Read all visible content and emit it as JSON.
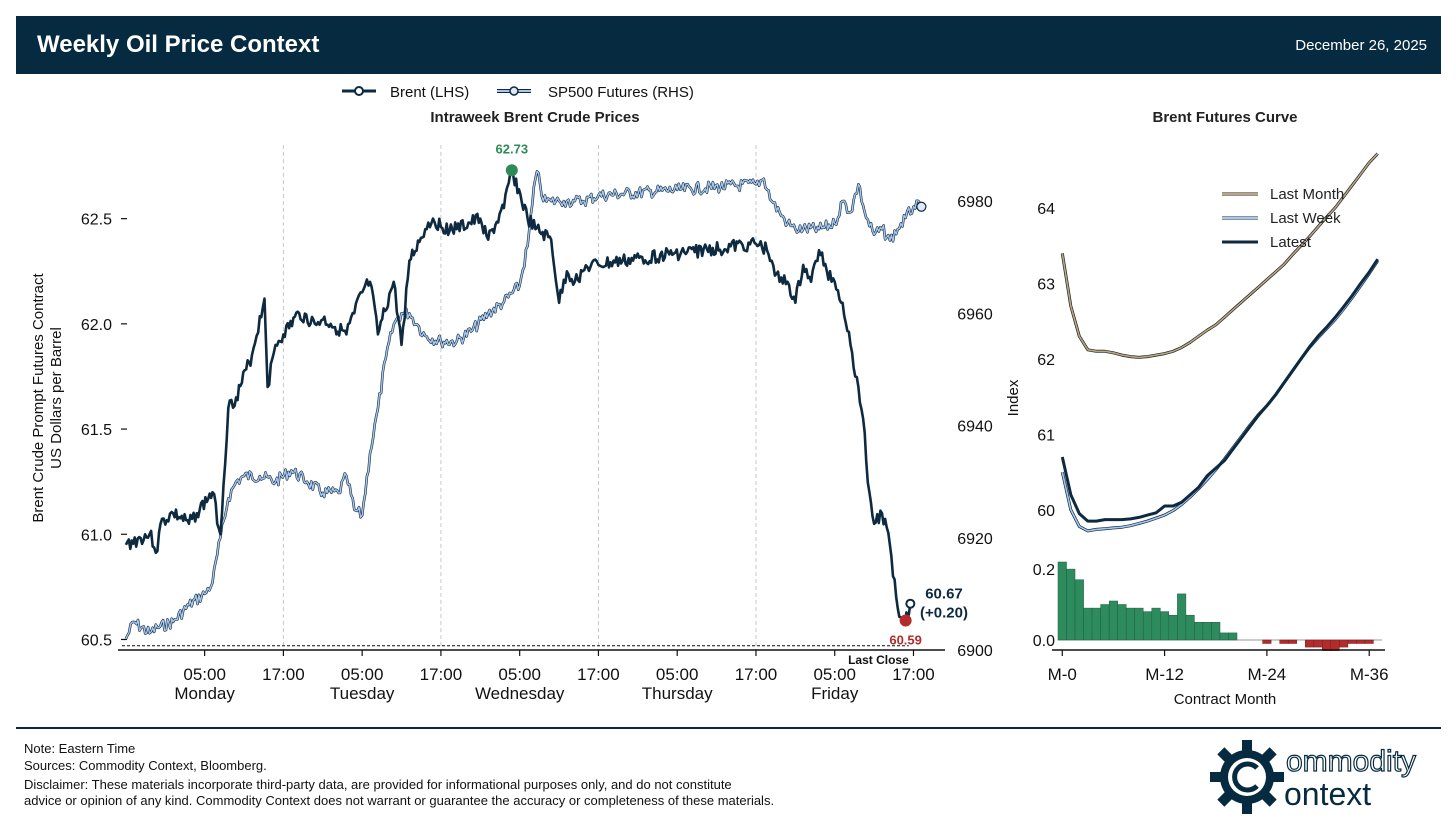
{
  "header": {
    "title": "Weekly Oil Price Context",
    "date": "December 26, 2025"
  },
  "colors": {
    "header_bg": "#062a40",
    "brent": "#0d2a40",
    "sp500": "#a9c6ec",
    "high": "#2e8b57",
    "low": "#b32b2b",
    "last_month": "#c9a36e",
    "bar_pos": "#2e8b5e",
    "bar_neg": "#b32b2b"
  },
  "chart_data": [
    {
      "type": "line",
      "title": "Intraweek Brent Crude Prices",
      "ylabel_line1": "Brent Crude Prompt Futures Contract",
      "ylabel_line2": "US Dollars per Barrel",
      "ylim_left": [
        60.45,
        62.85
      ],
      "ylim_right": [
        6900,
        6990
      ],
      "left_ticks": [
        "60.5",
        "61.0",
        "61.5",
        "62.0",
        "62.5"
      ],
      "left_tick_values": [
        60.5,
        61.0,
        61.5,
        62.0,
        62.5
      ],
      "right_ticks": [
        "6900",
        "6920",
        "6940",
        "6960",
        "6980"
      ],
      "right_tick_values": [
        6900,
        6920,
        6940,
        6960,
        6980
      ],
      "x_ticks": [
        {
          "time": "05:00",
          "day": "Monday",
          "t": 0.5
        },
        {
          "time": "17:00",
          "day": "",
          "t": 1.0
        },
        {
          "time": "05:00",
          "day": "Tuesday",
          "t": 1.5
        },
        {
          "time": "17:00",
          "day": "",
          "t": 2.0
        },
        {
          "time": "05:00",
          "day": "Wednesday",
          "t": 2.5
        },
        {
          "time": "17:00",
          "day": "",
          "t": 3.0
        },
        {
          "time": "05:00",
          "day": "Thursday",
          "t": 3.5
        },
        {
          "time": "17:00",
          "day": "",
          "t": 4.0
        },
        {
          "time": "05:00",
          "day": "Friday",
          "t": 4.5
        },
        {
          "time": "17:00",
          "day": "",
          "t": 5.0
        }
      ],
      "xlim": [
        -0.05,
        5.2
      ],
      "legend": [
        {
          "name": "Brent (LHS)"
        },
        {
          "name": "SP500 Futures (RHS)"
        }
      ],
      "series": [
        {
          "name": "Brent (LHS)",
          "t": [
            0.0,
            0.15,
            0.2,
            0.22,
            0.3,
            0.4,
            0.45,
            0.55,
            0.6,
            0.65,
            0.7,
            0.8,
            0.88,
            0.9,
            0.95,
            1.0,
            1.1,
            1.2,
            1.25,
            1.3,
            1.4,
            1.45,
            1.5,
            1.55,
            1.6,
            1.7,
            1.75,
            1.8,
            1.9,
            1.95,
            2.0,
            2.1,
            2.25,
            2.3,
            2.4,
            2.45,
            2.55,
            2.6,
            2.7,
            2.75,
            2.8,
            2.85,
            2.9,
            2.93,
            3.0,
            3.45,
            4.0,
            4.07,
            4.1,
            4.15,
            4.2,
            4.25,
            4.3,
            4.35,
            4.4,
            4.45,
            4.5,
            4.55,
            4.6,
            4.65,
            4.68,
            4.7,
            4.72,
            4.75,
            4.8,
            4.85,
            4.9,
            4.95,
            4.96,
            4.98
          ],
          "values": [
            60.95,
            61.0,
            60.92,
            61.05,
            61.1,
            61.05,
            61.1,
            61.2,
            61.0,
            61.6,
            61.65,
            61.85,
            62.12,
            61.7,
            61.9,
            61.95,
            62.05,
            62.0,
            62.02,
            62.0,
            61.95,
            62.05,
            62.15,
            62.2,
            61.95,
            62.2,
            61.9,
            62.3,
            62.45,
            62.5,
            62.46,
            62.45,
            62.5,
            62.4,
            62.55,
            62.73,
            62.5,
            62.45,
            62.4,
            62.1,
            62.25,
            62.2,
            62.25,
            62.27,
            62.28,
            62.33,
            62.38,
            62.35,
            62.3,
            62.2,
            62.2,
            62.1,
            62.28,
            62.2,
            62.35,
            62.25,
            62.2,
            62.1,
            61.9,
            61.7,
            61.55,
            61.35,
            61.2,
            61.05,
            61.1,
            60.95,
            60.65,
            60.59,
            60.62,
            60.67
          ]
        },
        {
          "name": "SP500 Futures (RHS)",
          "t": [
            0.0,
            0.05,
            0.15,
            0.2,
            0.3,
            0.4,
            0.5,
            0.55,
            0.6,
            0.65,
            0.7,
            0.75,
            0.85,
            0.95,
            1.05,
            1.15,
            1.25,
            1.35,
            1.4,
            1.45,
            1.5,
            1.55,
            1.6,
            1.65,
            1.7,
            1.75,
            1.8,
            1.85,
            1.9,
            2.0,
            2.1,
            2.2,
            2.3,
            2.4,
            2.5,
            2.55,
            2.6,
            2.62,
            2.65,
            2.7,
            2.75,
            2.78,
            2.8,
            2.85,
            2.9,
            3.0,
            3.5,
            4.0,
            4.05,
            4.1,
            4.15,
            4.2,
            4.25,
            4.3,
            4.4,
            4.5,
            4.55,
            4.6,
            4.65,
            4.7,
            4.75,
            4.8,
            4.85,
            4.9,
            4.95,
            5.0,
            5.05
          ],
          "values": [
            6902,
            6905,
            6903,
            6904,
            6905,
            6908,
            6910,
            6912,
            6920,
            6927,
            6930,
            6931,
            6931,
            6930,
            6932,
            6930,
            6928,
            6928,
            6931,
            6925,
            6924,
            6935,
            6943,
            6952,
            6958,
            6960,
            6960,
            6958,
            6956,
            6955,
            6955,
            6957,
            6960,
            6962,
            6965,
            6972,
            6984,
            6985,
            6980,
            6980,
            6980,
            6980,
            6980,
            6980,
            6980,
            6981,
            6982,
            6983,
            6984,
            6980,
            6978,
            6976,
            6975,
            6975,
            6975,
            6976,
            6980,
            6978,
            6983,
            6977,
            6974,
            6975,
            6973,
            6975,
            6977,
            6979,
            6979
          ]
        }
      ],
      "gaps_t": [
        1.0,
        2.0,
        2.93,
        4.0
      ],
      "annotations": {
        "high": {
          "label": "62.73",
          "t": 2.45,
          "value": 62.73
        },
        "low": {
          "label": "60.59",
          "t": 4.95,
          "value": 60.59
        },
        "last": {
          "label": "60.67",
          "change": "(+0.20)",
          "t": 4.98,
          "value": 60.67
        },
        "last_close": {
          "label": "Last Close",
          "value": 60.47
        }
      }
    },
    {
      "type": "line",
      "title": "Brent Futures Curve",
      "xlabel": "Contract Month",
      "ylabel": "Index",
      "ylim": [
        59.6,
        64.9
      ],
      "y_ticks": [
        "60",
        "61",
        "62",
        "63",
        "64"
      ],
      "y_tick_values": [
        60,
        61,
        62,
        63,
        64
      ],
      "x_ticks": [
        {
          "label": "M-0",
          "m": 0
        },
        {
          "label": "M-12",
          "m": 12
        },
        {
          "label": "M-24",
          "m": 24
        },
        {
          "label": "M-36",
          "m": 36
        }
      ],
      "legend": [
        {
          "name": "Last Month"
        },
        {
          "name": "Last Week"
        },
        {
          "name": "Latest"
        }
      ],
      "series": [
        {
          "name": "Last Month",
          "values": [
            63.4,
            62.7,
            62.3,
            62.12,
            62.1,
            62.1,
            62.08,
            62.05,
            62.03,
            62.02,
            62.03,
            62.05,
            62.07,
            62.1,
            62.15,
            62.22,
            62.3,
            62.38,
            62.45,
            62.55,
            62.65,
            62.75,
            62.85,
            62.95,
            63.05,
            63.15,
            63.25,
            63.38,
            63.5,
            63.62,
            63.75,
            63.88,
            64.0,
            64.15,
            64.3,
            64.45,
            64.6,
            64.72
          ]
        },
        {
          "name": "Last Week",
          "values": [
            60.5,
            60.0,
            59.78,
            59.72,
            59.74,
            59.75,
            59.76,
            59.77,
            59.79,
            59.82,
            59.85,
            59.89,
            59.93,
            59.99,
            60.07,
            60.17,
            60.28,
            60.4,
            60.53,
            60.67,
            60.82,
            60.97,
            61.12,
            61.26,
            61.38,
            61.52,
            61.68,
            61.84,
            62.0,
            62.15,
            62.28,
            62.4,
            62.52,
            62.66,
            62.81,
            62.97,
            63.13,
            63.3
          ]
        },
        {
          "name": "Latest",
          "values": [
            60.7,
            60.2,
            59.95,
            59.85,
            59.85,
            59.87,
            59.87,
            59.87,
            59.88,
            59.9,
            59.93,
            59.96,
            60.05,
            60.05,
            60.1,
            60.2,
            60.3,
            60.45,
            60.55,
            60.65,
            60.8,
            60.95,
            61.1,
            61.25,
            61.38,
            61.52,
            61.68,
            61.84,
            62.0,
            62.16,
            62.3,
            62.42,
            62.55,
            62.69,
            62.84,
            63.0,
            63.15,
            63.32
          ]
        }
      ],
      "diff_bars": {
        "ylim": [
          -0.05,
          0.25
        ],
        "y_ticks": [
          "0.0",
          "0.2"
        ],
        "y_tick_values": [
          0.0,
          0.2
        ],
        "values": [
          0.22,
          0.2,
          0.17,
          0.09,
          0.09,
          0.1,
          0.11,
          0.1,
          0.09,
          0.09,
          0.08,
          0.09,
          0.08,
          0.07,
          0.13,
          0.07,
          0.05,
          0.05,
          0.05,
          0.02,
          0.02,
          0.0,
          0.0,
          0.0,
          -0.01,
          0.0,
          -0.01,
          -0.01,
          0.0,
          -0.02,
          -0.02,
          -0.03,
          -0.03,
          -0.02,
          -0.01,
          -0.01,
          -0.01,
          0.0
        ]
      }
    }
  ],
  "footer": {
    "note": "Note: Eastern Time",
    "sources": "Sources: Commodity Context, Bloomberg.",
    "disclaimer1": "Disclaimer: These materials incorporate third-party data, are provided for informational purposes only, and do not constitute",
    "disclaimer2": "advice or opinion of any kind. Commodity Context does not warrant or guarantee the accuracy or completeness of these materials."
  },
  "logo": {
    "word1": "ommodity",
    "word2": "ontext",
    "icon": "gear-c-logo-icon"
  }
}
